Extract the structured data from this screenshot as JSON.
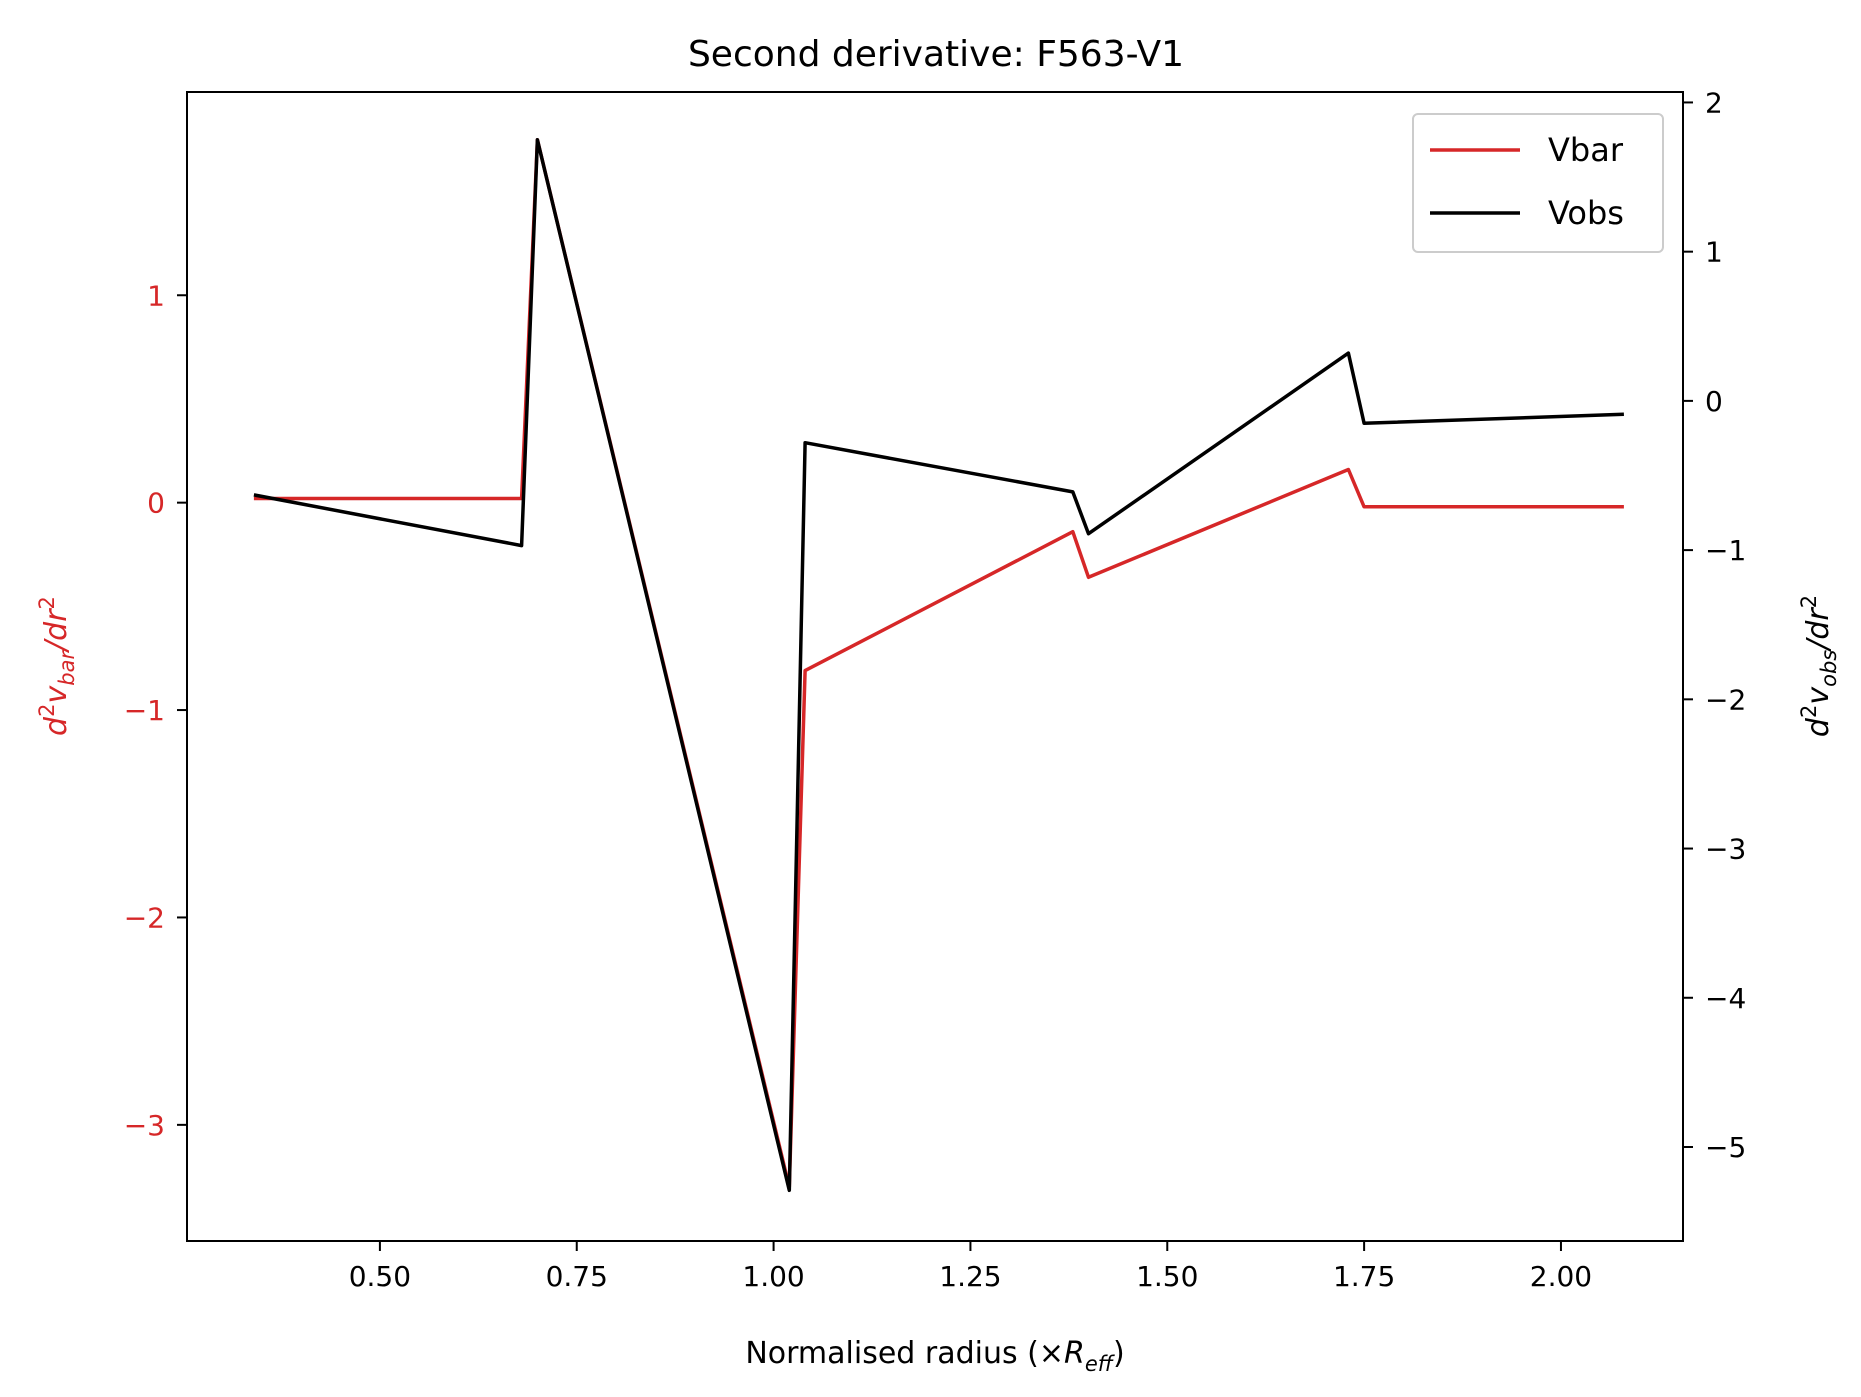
{
  "chart_data": {
    "type": "line",
    "title": "Second derivative: F563-V1",
    "xlabel": "Normalised radius (×R_eff)",
    "ylabel_left": "d²v_bar/dr²",
    "ylabel_right": "d²v_obs/dr²",
    "xlim": [
      0.255,
      2.155
    ],
    "ylim_left": [
      -3.56,
      1.98
    ],
    "ylim_right": [
      -5.63,
      2.07
    ],
    "x_ticks": [
      0.5,
      0.75,
      1.0,
      1.25,
      1.5,
      1.75,
      2.0
    ],
    "x_tick_labels": [
      "0.50",
      "0.75",
      "1.00",
      "1.25",
      "1.50",
      "1.75",
      "2.00"
    ],
    "y_left_ticks": [
      1,
      0,
      -1,
      -2,
      -3
    ],
    "y_left_tick_labels": [
      "1",
      "0",
      "−1",
      "−2",
      "−3"
    ],
    "y_right_ticks": [
      2,
      1,
      0,
      -1,
      -2,
      -3,
      -4,
      -5
    ],
    "y_right_tick_labels": [
      "2",
      "1",
      "0",
      "−1",
      "−2",
      "−3",
      "−4",
      "−5"
    ],
    "legend": {
      "position": "upper right"
    },
    "series": [
      {
        "name": "Vbar",
        "axis": "left",
        "color": "#d62728",
        "x": [
          0.34,
          0.68,
          0.7,
          1.02,
          1.04,
          1.38,
          1.4,
          1.73,
          1.75,
          2.08
        ],
        "y": [
          0.02,
          0.02,
          1.75,
          -3.3,
          -0.81,
          -0.14,
          -0.36,
          0.16,
          -0.02,
          -0.02
        ]
      },
      {
        "name": "Vobs",
        "axis": "right",
        "color": "#000000",
        "x": [
          0.34,
          0.68,
          0.7,
          1.02,
          1.04,
          1.38,
          1.4,
          1.73,
          1.75,
          2.08
        ],
        "y": [
          -0.63,
          -0.97,
          1.75,
          -5.29,
          -0.28,
          -0.61,
          -0.89,
          0.32,
          -0.15,
          -0.09
        ]
      }
    ]
  }
}
